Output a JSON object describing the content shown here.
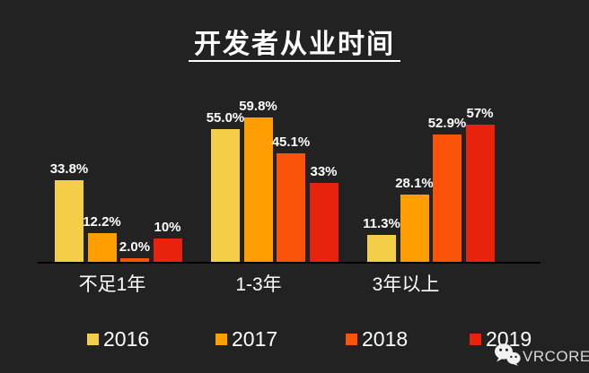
{
  "page_title": "开发者从业时间",
  "chart_data": {
    "type": "bar",
    "title": "开发者从业时间",
    "categories": [
      "不足1年",
      "1-3年",
      "3年以上"
    ],
    "series": [
      {
        "name": "2016",
        "color": "#F3CE46",
        "values": [
          33.8,
          55.0,
          11.3
        ],
        "labels": [
          "33.8%",
          "55.0%",
          "11.3%"
        ]
      },
      {
        "name": "2017",
        "color": "#FF9E01",
        "values": [
          12.2,
          59.8,
          28.1
        ],
        "labels": [
          "12.2%",
          "59.8%",
          "28.1%"
        ]
      },
      {
        "name": "2018",
        "color": "#FB5309",
        "values": [
          2.0,
          45.1,
          52.9
        ],
        "labels": [
          "2.0%",
          "45.1%",
          "52.9%"
        ]
      },
      {
        "name": "2019",
        "color": "#E8220D",
        "values": [
          10,
          33,
          57
        ],
        "labels": [
          "10%",
          "33%",
          "57%"
        ]
      }
    ],
    "ylim": [
      0,
      65
    ],
    "grid": false,
    "value_labels_shown": true,
    "legend_position": "bottom",
    "xlabel": "",
    "ylabel": ""
  },
  "legend": {
    "items": [
      {
        "label": "2016",
        "color": "#F3CE46"
      },
      {
        "label": "2017",
        "color": "#FF9E01"
      },
      {
        "label": "2018",
        "color": "#FB5309"
      },
      {
        "label": "2019",
        "color": "#E8220D"
      }
    ]
  },
  "watermark": {
    "text": "VRCORE",
    "icon": "wechat-icon"
  },
  "colors": {
    "background": "#222222",
    "text": "#FFFFFF",
    "axis_line": "#000000",
    "watermark_text": "#D9D9D9"
  }
}
